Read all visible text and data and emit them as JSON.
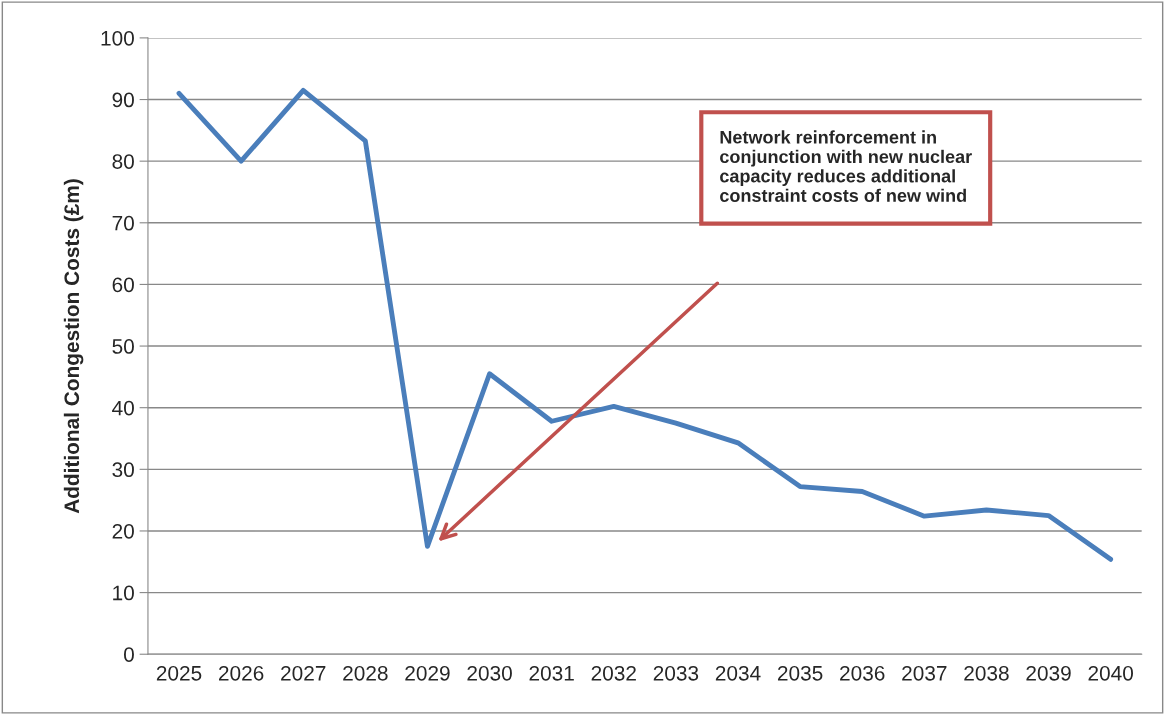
{
  "chart_data": {
    "type": "line",
    "ylabel": "Additional Congestion Costs (£m)",
    "categories": [
      "2025",
      "2026",
      "2027",
      "2028",
      "2029",
      "2030",
      "2031",
      "2032",
      "2033",
      "2034",
      "2035",
      "2036",
      "2037",
      "2038",
      "2039",
      "2040"
    ],
    "series": [
      {
        "color": "#4a7ebb",
        "values": [
          91,
          80,
          91.5,
          83.3,
          17.5,
          45.5,
          37.8,
          40.2,
          37.5,
          34.3,
          27.2,
          26.4,
          22.4,
          23.4,
          22.5,
          15.4
        ]
      }
    ],
    "ylim": [
      0,
      100
    ],
    "yticks": [
      0,
      10,
      20,
      30,
      40,
      50,
      60,
      70,
      80,
      90,
      100
    ],
    "grid": "y",
    "annotations": [
      "Network reinforcement in conjunction with new nuclear capacity reduces additional constraint costs of new wind"
    ]
  }
}
